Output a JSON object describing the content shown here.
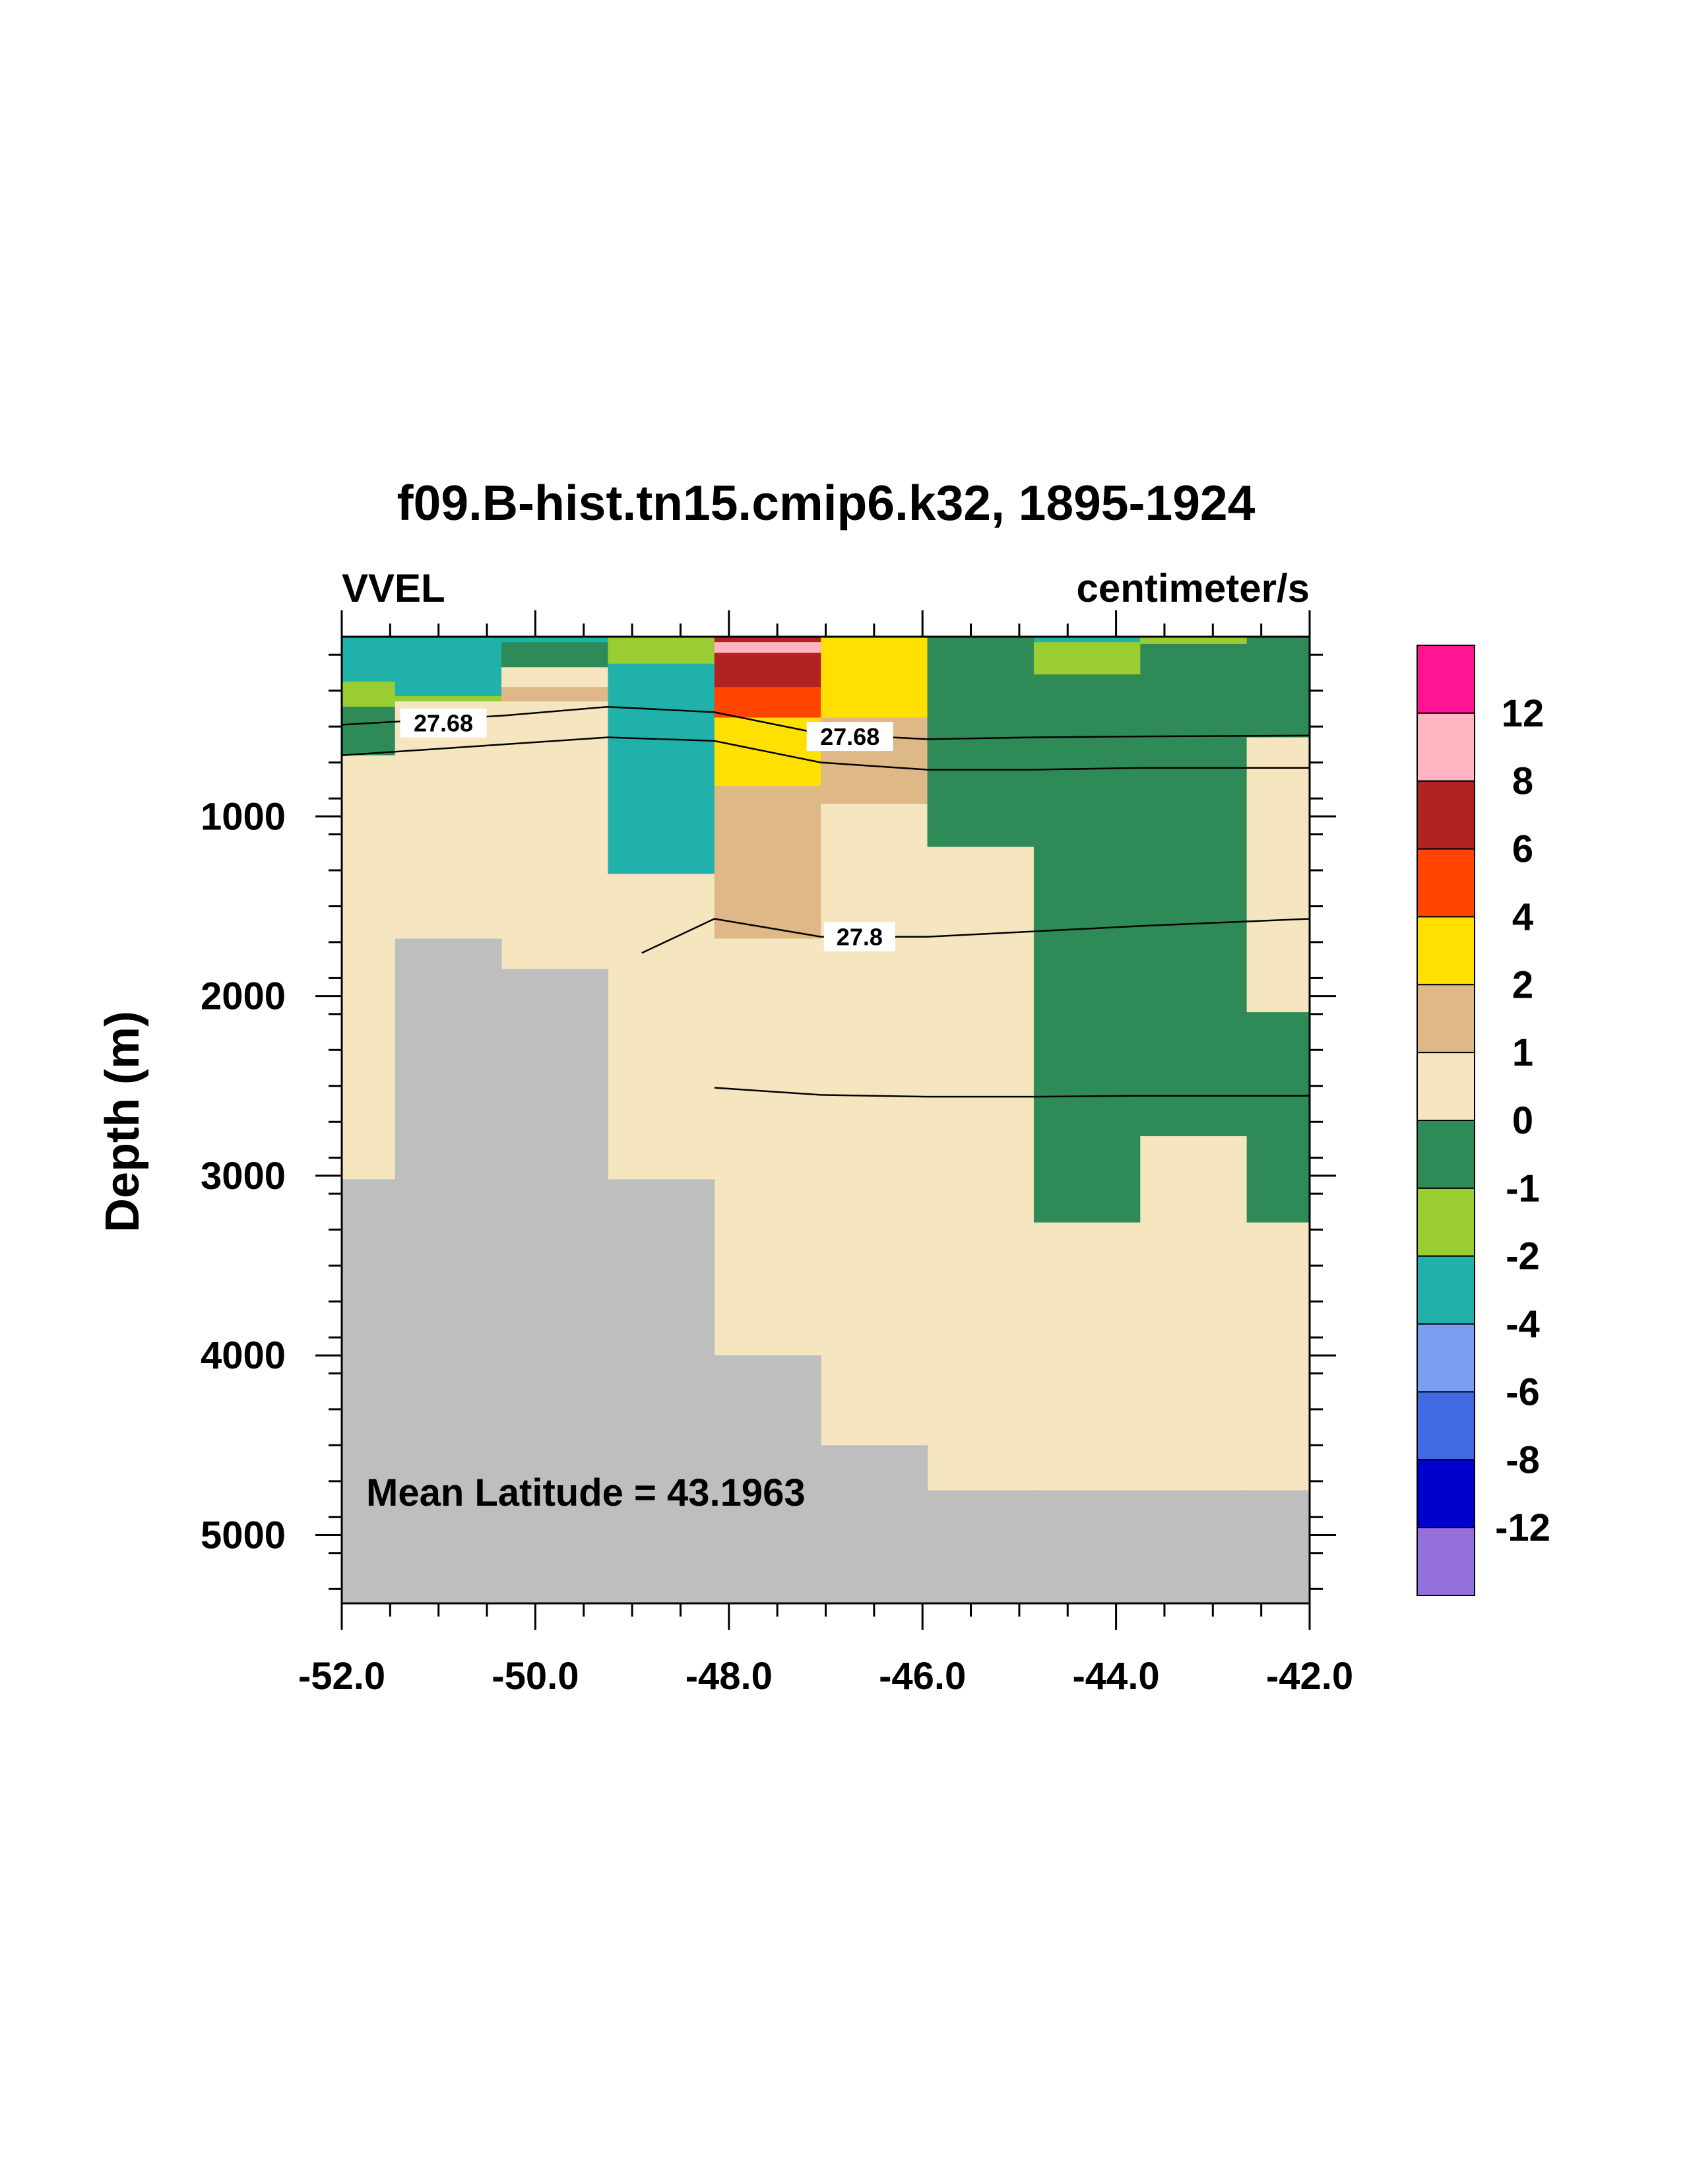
{
  "chart_data": {
    "type": "heatmap",
    "title": "f09.B-hist.tn15.cmip6.k32, 1895-1924",
    "left_label": "VVEL",
    "right_label": "centimeter/s",
    "ylabel": "Depth (m)",
    "xlabel": "",
    "annotation": "Mean Latitude = 43.1963",
    "xlim": [
      -52.0,
      -42.0
    ],
    "ylim": [
      0,
      5380
    ],
    "y_inverted": true,
    "xticks": [
      -52.0,
      -50.0,
      -48.0,
      -46.0,
      -44.0,
      -42.0
    ],
    "xtick_labels": [
      "-52.0",
      "-50.0",
      "-48.0",
      "-46.0",
      "-44.0",
      "-42.0"
    ],
    "yticks": [
      1000,
      2000,
      3000,
      4000,
      5000
    ],
    "ytick_labels": [
      "1000",
      "2000",
      "3000",
      "4000",
      "5000"
    ],
    "colorbar": {
      "labels": [
        "12",
        "8",
        "6",
        "4",
        "2",
        "1",
        "0",
        "-1",
        "-2",
        "-4",
        "-6",
        "-8",
        "-12"
      ],
      "colors": [
        "#ff1493",
        "#ffb6c1",
        "#b22222",
        "#ff4500",
        "#ffe000",
        "#deb887",
        "#f5e6c0",
        "#2e8b57",
        "#9acd32",
        "#20b2aa",
        "#7b9ef0",
        "#4169e1",
        "#0000cd",
        "#9370db"
      ]
    },
    "land_color": "#bebebe",
    "columns": [
      -52.0,
      -51.45,
      -50.35,
      -49.25,
      -48.15,
      -47.05,
      -45.95,
      -44.85,
      -43.75,
      -42.65,
      -42.0
    ],
    "cells": [
      {
        "x": [
          -52.0,
          -51.45
        ],
        "d": [
          0,
          250
        ],
        "color": "#20b2aa"
      },
      {
        "x": [
          -52.0,
          -51.45
        ],
        "d": [
          250,
          390
        ],
        "color": "#9acd32"
      },
      {
        "x": [
          -52.0,
          -51.45
        ],
        "d": [
          390,
          660
        ],
        "color": "#2e8b57"
      },
      {
        "x": [
          -52.0,
          -51.45
        ],
        "d": [
          660,
          3020
        ],
        "color": "#f5e6c0"
      },
      {
        "x": [
          -51.45,
          -50.35
        ],
        "d": [
          0,
          330
        ],
        "color": "#20b2aa"
      },
      {
        "x": [
          -51.45,
          -50.35
        ],
        "d": [
          330,
          360
        ],
        "color": "#9acd32"
      },
      {
        "x": [
          -51.45,
          -50.35
        ],
        "d": [
          360,
          1680
        ],
        "color": "#f5e6c0"
      },
      {
        "x": [
          -50.35,
          -49.25
        ],
        "d": [
          0,
          30
        ],
        "color": "#20b2aa"
      },
      {
        "x": [
          -50.35,
          -49.25
        ],
        "d": [
          30,
          170
        ],
        "color": "#2e8b57"
      },
      {
        "x": [
          -50.35,
          -49.25
        ],
        "d": [
          170,
          280
        ],
        "color": "#f5e6c0"
      },
      {
        "x": [
          -50.35,
          -49.25
        ],
        "d": [
          280,
          360
        ],
        "color": "#deb887"
      },
      {
        "x": [
          -50.35,
          -49.25
        ],
        "d": [
          360,
          1850
        ],
        "color": "#f5e6c0"
      },
      {
        "x": [
          -49.25,
          -48.15
        ],
        "d": [
          0,
          150
        ],
        "color": "#9acd32"
      },
      {
        "x": [
          -49.25,
          -48.15
        ],
        "d": [
          150,
          1320
        ],
        "color": "#20b2aa"
      },
      {
        "x": [
          -49.25,
          -48.15
        ],
        "d": [
          1320,
          3020
        ],
        "color": "#f5e6c0"
      },
      {
        "x": [
          -48.15,
          -47.05
        ],
        "d": [
          0,
          30
        ],
        "color": "#b22222"
      },
      {
        "x": [
          -48.15,
          -47.05
        ],
        "d": [
          30,
          90
        ],
        "color": "#ffb6c1"
      },
      {
        "x": [
          -48.15,
          -47.05
        ],
        "d": [
          90,
          280
        ],
        "color": "#b22222"
      },
      {
        "x": [
          -48.15,
          -47.05
        ],
        "d": [
          280,
          450
        ],
        "color": "#ff4500"
      },
      {
        "x": [
          -48.15,
          -47.05
        ],
        "d": [
          450,
          830
        ],
        "color": "#ffe000"
      },
      {
        "x": [
          -48.15,
          -47.05
        ],
        "d": [
          830,
          1680
        ],
        "color": "#deb887"
      },
      {
        "x": [
          -48.15,
          -47.05
        ],
        "d": [
          1680,
          4000
        ],
        "color": "#f5e6c0"
      },
      {
        "x": [
          -47.05,
          -45.95
        ],
        "d": [
          0,
          450
        ],
        "color": "#ffe000"
      },
      {
        "x": [
          -47.05,
          -45.95
        ],
        "d": [
          450,
          930
        ],
        "color": "#deb887"
      },
      {
        "x": [
          -47.05,
          -45.95
        ],
        "d": [
          930,
          4500
        ],
        "color": "#f5e6c0"
      },
      {
        "x": [
          -45.95,
          -44.85
        ],
        "d": [
          0,
          1170
        ],
        "color": "#2e8b57"
      },
      {
        "x": [
          -45.95,
          -44.85
        ],
        "d": [
          1170,
          4750
        ],
        "color": "#f5e6c0"
      },
      {
        "x": [
          -44.85,
          -43.75
        ],
        "d": [
          0,
          30
        ],
        "color": "#20b2aa"
      },
      {
        "x": [
          -44.85,
          -43.75
        ],
        "d": [
          30,
          210
        ],
        "color": "#9acd32"
      },
      {
        "x": [
          -44.85,
          -43.75
        ],
        "d": [
          210,
          3260
        ],
        "color": "#2e8b57"
      },
      {
        "x": [
          -44.85,
          -43.75
        ],
        "d": [
          3260,
          4750
        ],
        "color": "#f5e6c0"
      },
      {
        "x": [
          -43.75,
          -42.65
        ],
        "d": [
          0,
          40
        ],
        "color": "#9acd32"
      },
      {
        "x": [
          -43.75,
          -42.65
        ],
        "d": [
          40,
          2780
        ],
        "color": "#2e8b57"
      },
      {
        "x": [
          -43.75,
          -42.65
        ],
        "d": [
          2780,
          4750
        ],
        "color": "#f5e6c0"
      },
      {
        "x": [
          -42.65,
          -42.0
        ],
        "d": [
          0,
          560
        ],
        "color": "#2e8b57"
      },
      {
        "x": [
          -42.65,
          -42.0
        ],
        "d": [
          560,
          2090
        ],
        "color": "#f5e6c0"
      },
      {
        "x": [
          -42.65,
          -42.0
        ],
        "d": [
          2090,
          3260
        ],
        "color": "#2e8b57"
      },
      {
        "x": [
          -42.65,
          -42.0
        ],
        "d": [
          3260,
          4750
        ],
        "color": "#f5e6c0"
      }
    ],
    "land_depths": [
      3020,
      1680,
      1850,
      3020,
      4000,
      4500,
      4750,
      4750,
      4750,
      4750
    ],
    "contours": [
      {
        "label": "27.68",
        "points": [
          [
            -52.0,
            490
          ],
          [
            -50.35,
            440
          ],
          [
            -49.25,
            390
          ],
          [
            -48.15,
            420
          ],
          [
            -47.05,
            540
          ],
          [
            -45.95,
            570
          ],
          [
            -44.85,
            560
          ],
          [
            -43.75,
            555
          ],
          [
            -42.0,
            550
          ]
        ]
      },
      {
        "label": "",
        "points": [
          [
            -52.0,
            660
          ],
          [
            -50.35,
            600
          ],
          [
            -49.25,
            560
          ],
          [
            -48.15,
            580
          ],
          [
            -47.05,
            700
          ],
          [
            -45.95,
            740
          ],
          [
            -44.85,
            740
          ],
          [
            -43.75,
            730
          ],
          [
            -42.0,
            730
          ]
        ]
      },
      {
        "label": "27.8",
        "points": [
          [
            -48.9,
            1760
          ],
          [
            -48.15,
            1570
          ],
          [
            -47.05,
            1670
          ],
          [
            -45.95,
            1670
          ],
          [
            -44.85,
            1640
          ],
          [
            -43.75,
            1610
          ],
          [
            -42.0,
            1570
          ]
        ]
      },
      {
        "label": "",
        "points": [
          [
            -48.15,
            2510
          ],
          [
            -47.05,
            2550
          ],
          [
            -45.95,
            2560
          ],
          [
            -44.85,
            2560
          ],
          [
            -43.75,
            2555
          ],
          [
            -42.0,
            2555
          ]
        ]
      }
    ]
  }
}
